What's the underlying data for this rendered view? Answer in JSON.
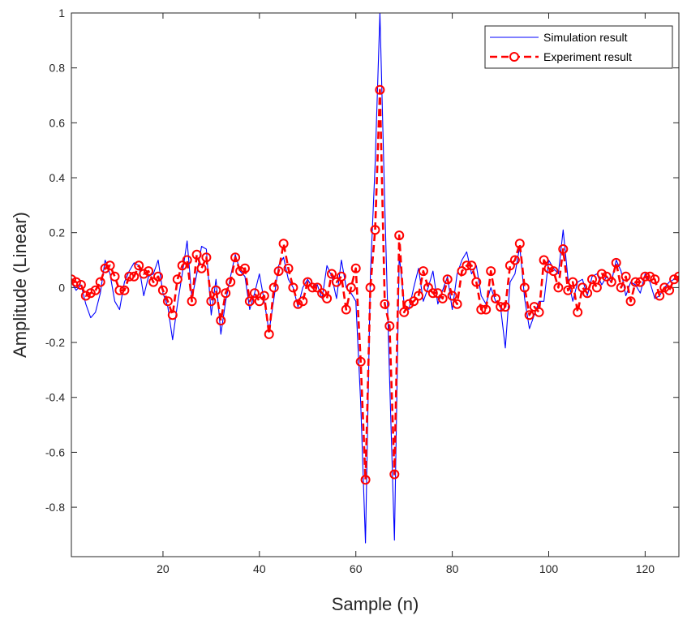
{
  "chart_data": {
    "type": "line",
    "title": "",
    "xlabel": "Sample (n)",
    "ylabel": "Amplitude (Linear)",
    "xlim": [
      1,
      127
    ],
    "ylim": [
      -0.98,
      1
    ],
    "xticks": [
      20,
      40,
      60,
      80,
      100,
      120
    ],
    "yticks": [
      -0.8,
      -0.6,
      -0.4,
      -0.2,
      0,
      0.2,
      0.4,
      0.6,
      0.8,
      1
    ],
    "xtick_labels": [
      "20",
      "40",
      "60",
      "80",
      "100",
      "120"
    ],
    "ytick_labels": [
      "-0.8",
      "-0.6",
      "-0.4",
      "-0.2",
      "0",
      "0.2",
      "0.4",
      "0.6",
      "0.8",
      "1"
    ],
    "legend_position": "top-right",
    "series": [
      {
        "name": "Simulation result",
        "color": "#0000ff",
        "style": "solid",
        "x": [
          1,
          2,
          3,
          4,
          5,
          6,
          7,
          8,
          9,
          10,
          11,
          12,
          13,
          14,
          15,
          16,
          17,
          18,
          19,
          20,
          21,
          22,
          23,
          24,
          25,
          26,
          27,
          28,
          29,
          30,
          31,
          32,
          33,
          34,
          35,
          36,
          37,
          38,
          39,
          40,
          41,
          42,
          43,
          44,
          45,
          46,
          47,
          48,
          49,
          50,
          51,
          52,
          53,
          54,
          55,
          56,
          57,
          58,
          59,
          60,
          61,
          62,
          63,
          64,
          65,
          66,
          67,
          68,
          69,
          70,
          71,
          72,
          73,
          74,
          75,
          76,
          77,
          78,
          79,
          80,
          81,
          82,
          83,
          84,
          85,
          86,
          87,
          88,
          89,
          90,
          91,
          92,
          93,
          94,
          95,
          96,
          97,
          98,
          99,
          100,
          101,
          102,
          103,
          104,
          105,
          106,
          107,
          108,
          109,
          110,
          111,
          112,
          113,
          114,
          115,
          116,
          117,
          118,
          119,
          120,
          121,
          122,
          123,
          124,
          125,
          126,
          127
        ],
        "values": [
          0.02,
          -0.01,
          0.01,
          -0.06,
          -0.11,
          -0.09,
          -0.02,
          0.1,
          0.05,
          -0.05,
          -0.08,
          0.02,
          0.06,
          0.09,
          0.08,
          -0.03,
          0.04,
          0.05,
          0.1,
          -0.02,
          -0.07,
          -0.19,
          -0.06,
          0.05,
          0.17,
          -0.04,
          0.05,
          0.15,
          0.14,
          -0.1,
          0.03,
          -0.17,
          -0.05,
          0.04,
          0.12,
          0.06,
          0.04,
          -0.08,
          -0.02,
          0.05,
          -0.05,
          -0.16,
          -0.04,
          0.08,
          0.11,
          0.03,
          0.0,
          -0.07,
          0.0,
          0.03,
          0.0,
          0.01,
          -0.04,
          0.08,
          0.04,
          -0.04,
          0.1,
          0.0,
          -0.02,
          -0.05,
          -0.42,
          -0.93,
          0.04,
          0.45,
          1.0,
          0.3,
          -0.33,
          -0.92,
          0.12,
          -0.06,
          -0.08,
          0.0,
          0.07,
          -0.05,
          0.0,
          0.06,
          -0.06,
          -0.01,
          0.04,
          -0.08,
          0.05,
          0.1,
          0.13,
          0.05,
          0.08,
          -0.03,
          -0.06,
          0.0,
          -0.05,
          -0.07,
          -0.22,
          0.02,
          0.05,
          0.15,
          -0.04,
          -0.15,
          -0.1,
          -0.05,
          -0.05,
          0.1,
          0.07,
          0.05,
          0.21,
          0.03,
          -0.05,
          0.02,
          0.03,
          -0.03,
          0.04,
          0.05,
          0.01,
          0.04,
          0.02,
          0.1,
          0.06,
          -0.03,
          0.02,
          0.01,
          -0.02,
          0.05,
          0.02,
          -0.04,
          -0.03,
          0.0,
          0.02,
          0.03,
          0.04
        ]
      },
      {
        "name": "Experiment result",
        "color": "#ff0000",
        "style": "dashed-circle",
        "x": [
          1,
          2,
          3,
          4,
          5,
          6,
          7,
          8,
          9,
          10,
          11,
          12,
          13,
          14,
          15,
          16,
          17,
          18,
          19,
          20,
          21,
          22,
          23,
          24,
          25,
          26,
          27,
          28,
          29,
          30,
          31,
          32,
          33,
          34,
          35,
          36,
          37,
          38,
          39,
          40,
          41,
          42,
          43,
          44,
          45,
          46,
          47,
          48,
          49,
          50,
          51,
          52,
          53,
          54,
          55,
          56,
          57,
          58,
          59,
          60,
          61,
          62,
          63,
          64,
          65,
          66,
          67,
          68,
          69,
          70,
          71,
          72,
          73,
          74,
          75,
          76,
          77,
          78,
          79,
          80,
          81,
          82,
          83,
          84,
          85,
          86,
          87,
          88,
          89,
          90,
          91,
          92,
          93,
          94,
          95,
          96,
          97,
          98,
          99,
          100,
          101,
          102,
          103,
          104,
          105,
          106,
          107,
          108,
          109,
          110,
          111,
          112,
          113,
          114,
          115,
          116,
          117,
          118,
          119,
          120,
          121,
          122,
          123,
          124,
          125,
          126,
          127
        ],
        "values": [
          0.03,
          0.02,
          0.01,
          -0.03,
          -0.02,
          -0.01,
          0.02,
          0.07,
          0.08,
          0.04,
          -0.01,
          -0.01,
          0.04,
          0.04,
          0.08,
          0.05,
          0.06,
          0.02,
          0.04,
          -0.01,
          -0.05,
          -0.1,
          0.03,
          0.08,
          0.1,
          -0.05,
          0.12,
          0.07,
          0.11,
          -0.05,
          -0.01,
          -0.12,
          -0.02,
          0.02,
          0.11,
          0.06,
          0.07,
          -0.05,
          -0.02,
          -0.05,
          -0.03,
          -0.17,
          0.0,
          0.06,
          0.16,
          0.07,
          0.0,
          -0.06,
          -0.05,
          0.02,
          0.0,
          0.0,
          -0.02,
          -0.04,
          0.05,
          0.02,
          0.04,
          -0.08,
          0.0,
          0.07,
          -0.27,
          -0.7,
          0.0,
          0.21,
          0.72,
          -0.06,
          -0.14,
          -0.68,
          0.19,
          -0.09,
          -0.06,
          -0.05,
          -0.03,
          0.06,
          0.0,
          -0.02,
          -0.02,
          -0.04,
          0.03,
          -0.03,
          -0.06,
          0.06,
          0.08,
          0.08,
          0.02,
          -0.08,
          -0.08,
          0.06,
          -0.04,
          -0.07,
          -0.07,
          0.08,
          0.1,
          0.16,
          0.0,
          -0.1,
          -0.07,
          -0.09,
          0.1,
          0.07,
          0.06,
          0.0,
          0.14,
          -0.01,
          0.02,
          -0.09,
          0.0,
          -0.02,
          0.03,
          0.0,
          0.05,
          0.04,
          0.02,
          0.09,
          0.0,
          0.04,
          -0.05,
          0.02,
          0.02,
          0.04,
          0.04,
          0.03,
          -0.03,
          0.0,
          -0.01,
          0.03,
          0.04
        ]
      }
    ]
  }
}
